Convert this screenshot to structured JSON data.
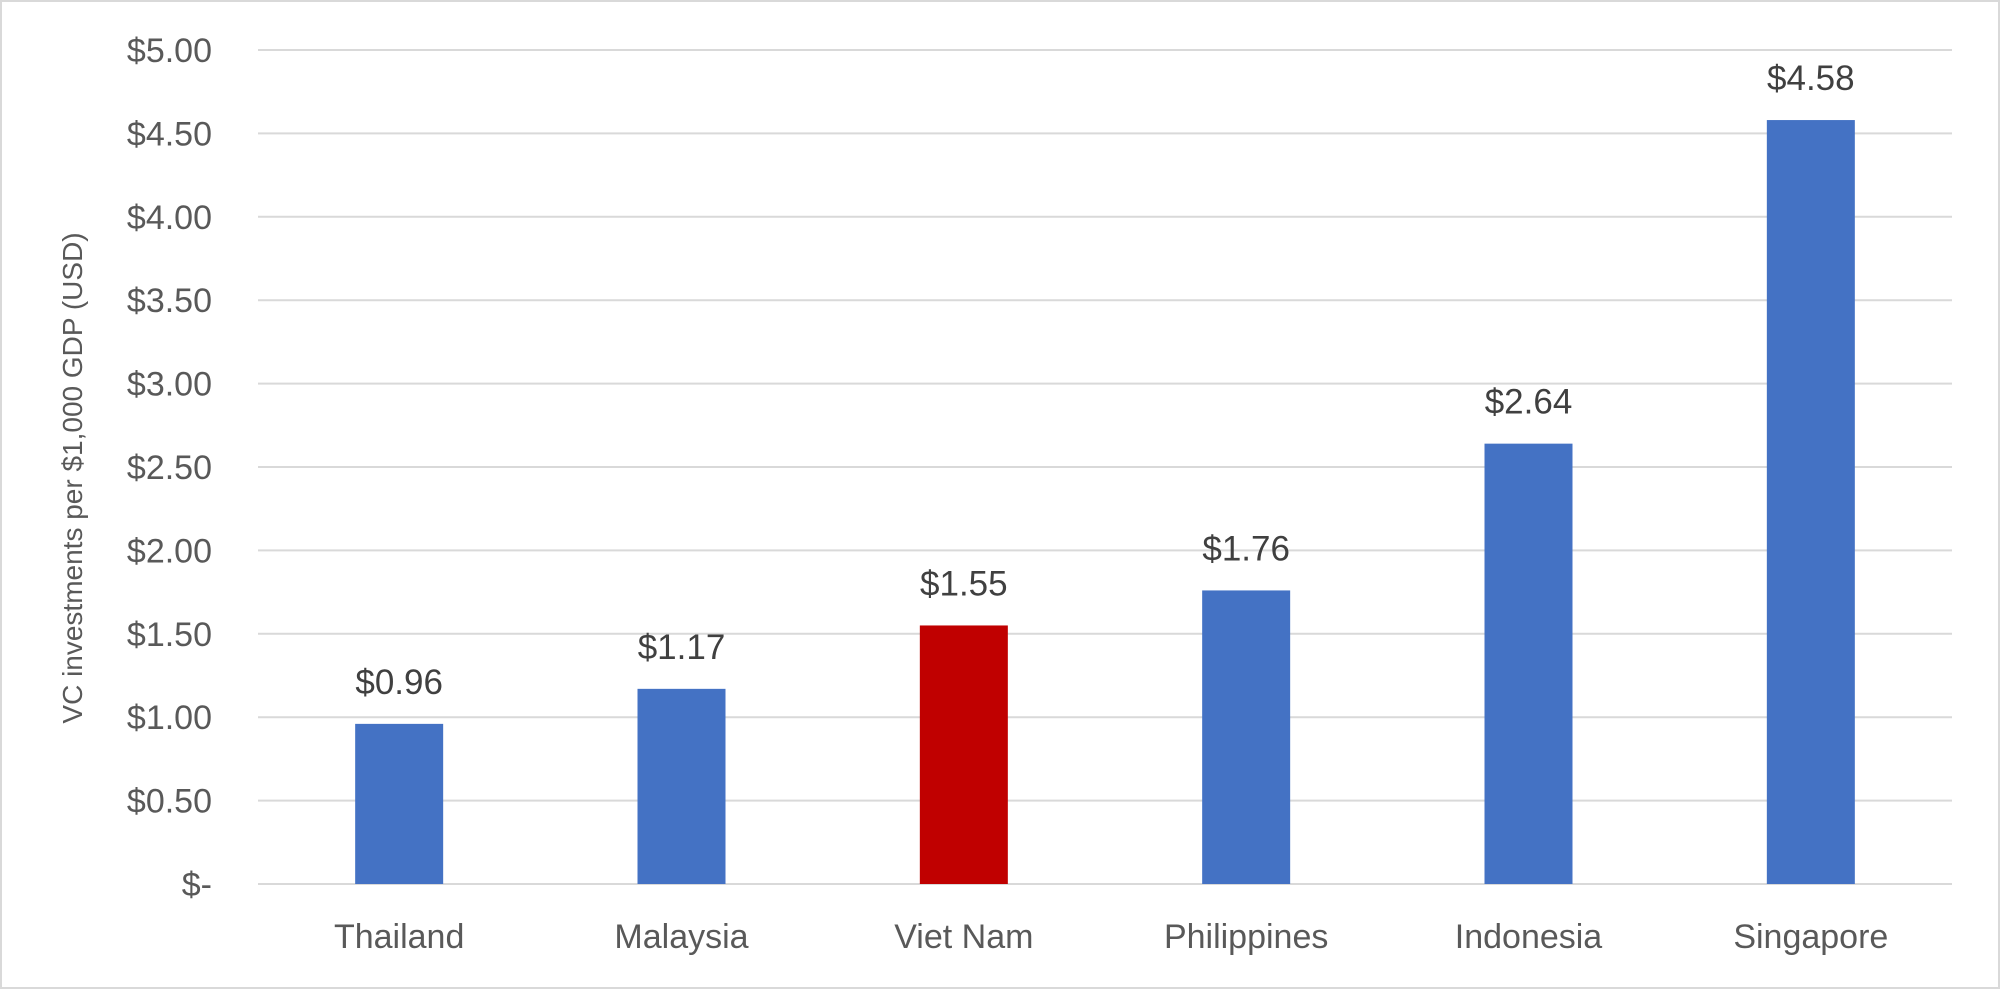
{
  "chart_data": {
    "type": "bar",
    "title": "",
    "xlabel": "",
    "ylabel": "VC investments per $1,000 GDP (USD)",
    "categories": [
      "Thailand",
      "Malaysia",
      "Viet Nam",
      "Philippines",
      "Indonesia",
      "Singapore"
    ],
    "values": [
      0.96,
      1.17,
      1.55,
      1.76,
      2.64,
      4.58
    ],
    "data_labels": [
      "$0.96",
      "$1.17",
      "$1.55",
      "$1.76",
      "$2.64",
      "$4.58"
    ],
    "bar_colors": [
      "#4472C4",
      "#4472C4",
      "#C00000",
      "#4472C4",
      "#4472C4",
      "#4472C4"
    ],
    "ylim": [
      0,
      5
    ],
    "y_ticks": [
      0,
      0.5,
      1,
      1.5,
      2,
      2.5,
      3,
      3.5,
      4,
      4.5,
      5
    ],
    "y_tick_labels": [
      "$-",
      "$0.50",
      "$1.00",
      "$1.50",
      "$2.00",
      "$2.50",
      "$3.00",
      "$3.50",
      "$4.00",
      "$4.50",
      "$5.00"
    ],
    "grid": true,
    "legend": "none",
    "colors": {
      "default_bar": "#4472C4",
      "highlight_bar": "#C00000",
      "gridline": "#D9D9D9"
    }
  }
}
